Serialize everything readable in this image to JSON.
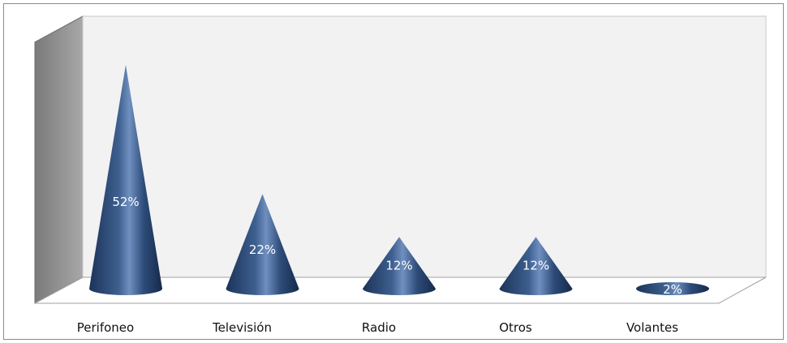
{
  "chart_data": {
    "type": "bar",
    "bar_shape": "cone-3d",
    "categories": [
      "Perifoneo",
      "Televisión",
      "Radio",
      "Otros",
      "Volantes"
    ],
    "values": [
      52,
      22,
      12,
      12,
      2
    ],
    "data_labels": [
      "52%",
      "22%",
      "12%",
      "12%",
      "2%"
    ],
    "ylim": [
      0,
      55
    ],
    "grid": false,
    "legend": "none",
    "colors": {
      "cone_dark": "#1c3358",
      "cone_mid": "#3d5f8f",
      "cone_light": "#6f8fbf",
      "back_wall": "#f2f2f2",
      "side_wall": "#909090",
      "floor": "#ffffff"
    }
  }
}
